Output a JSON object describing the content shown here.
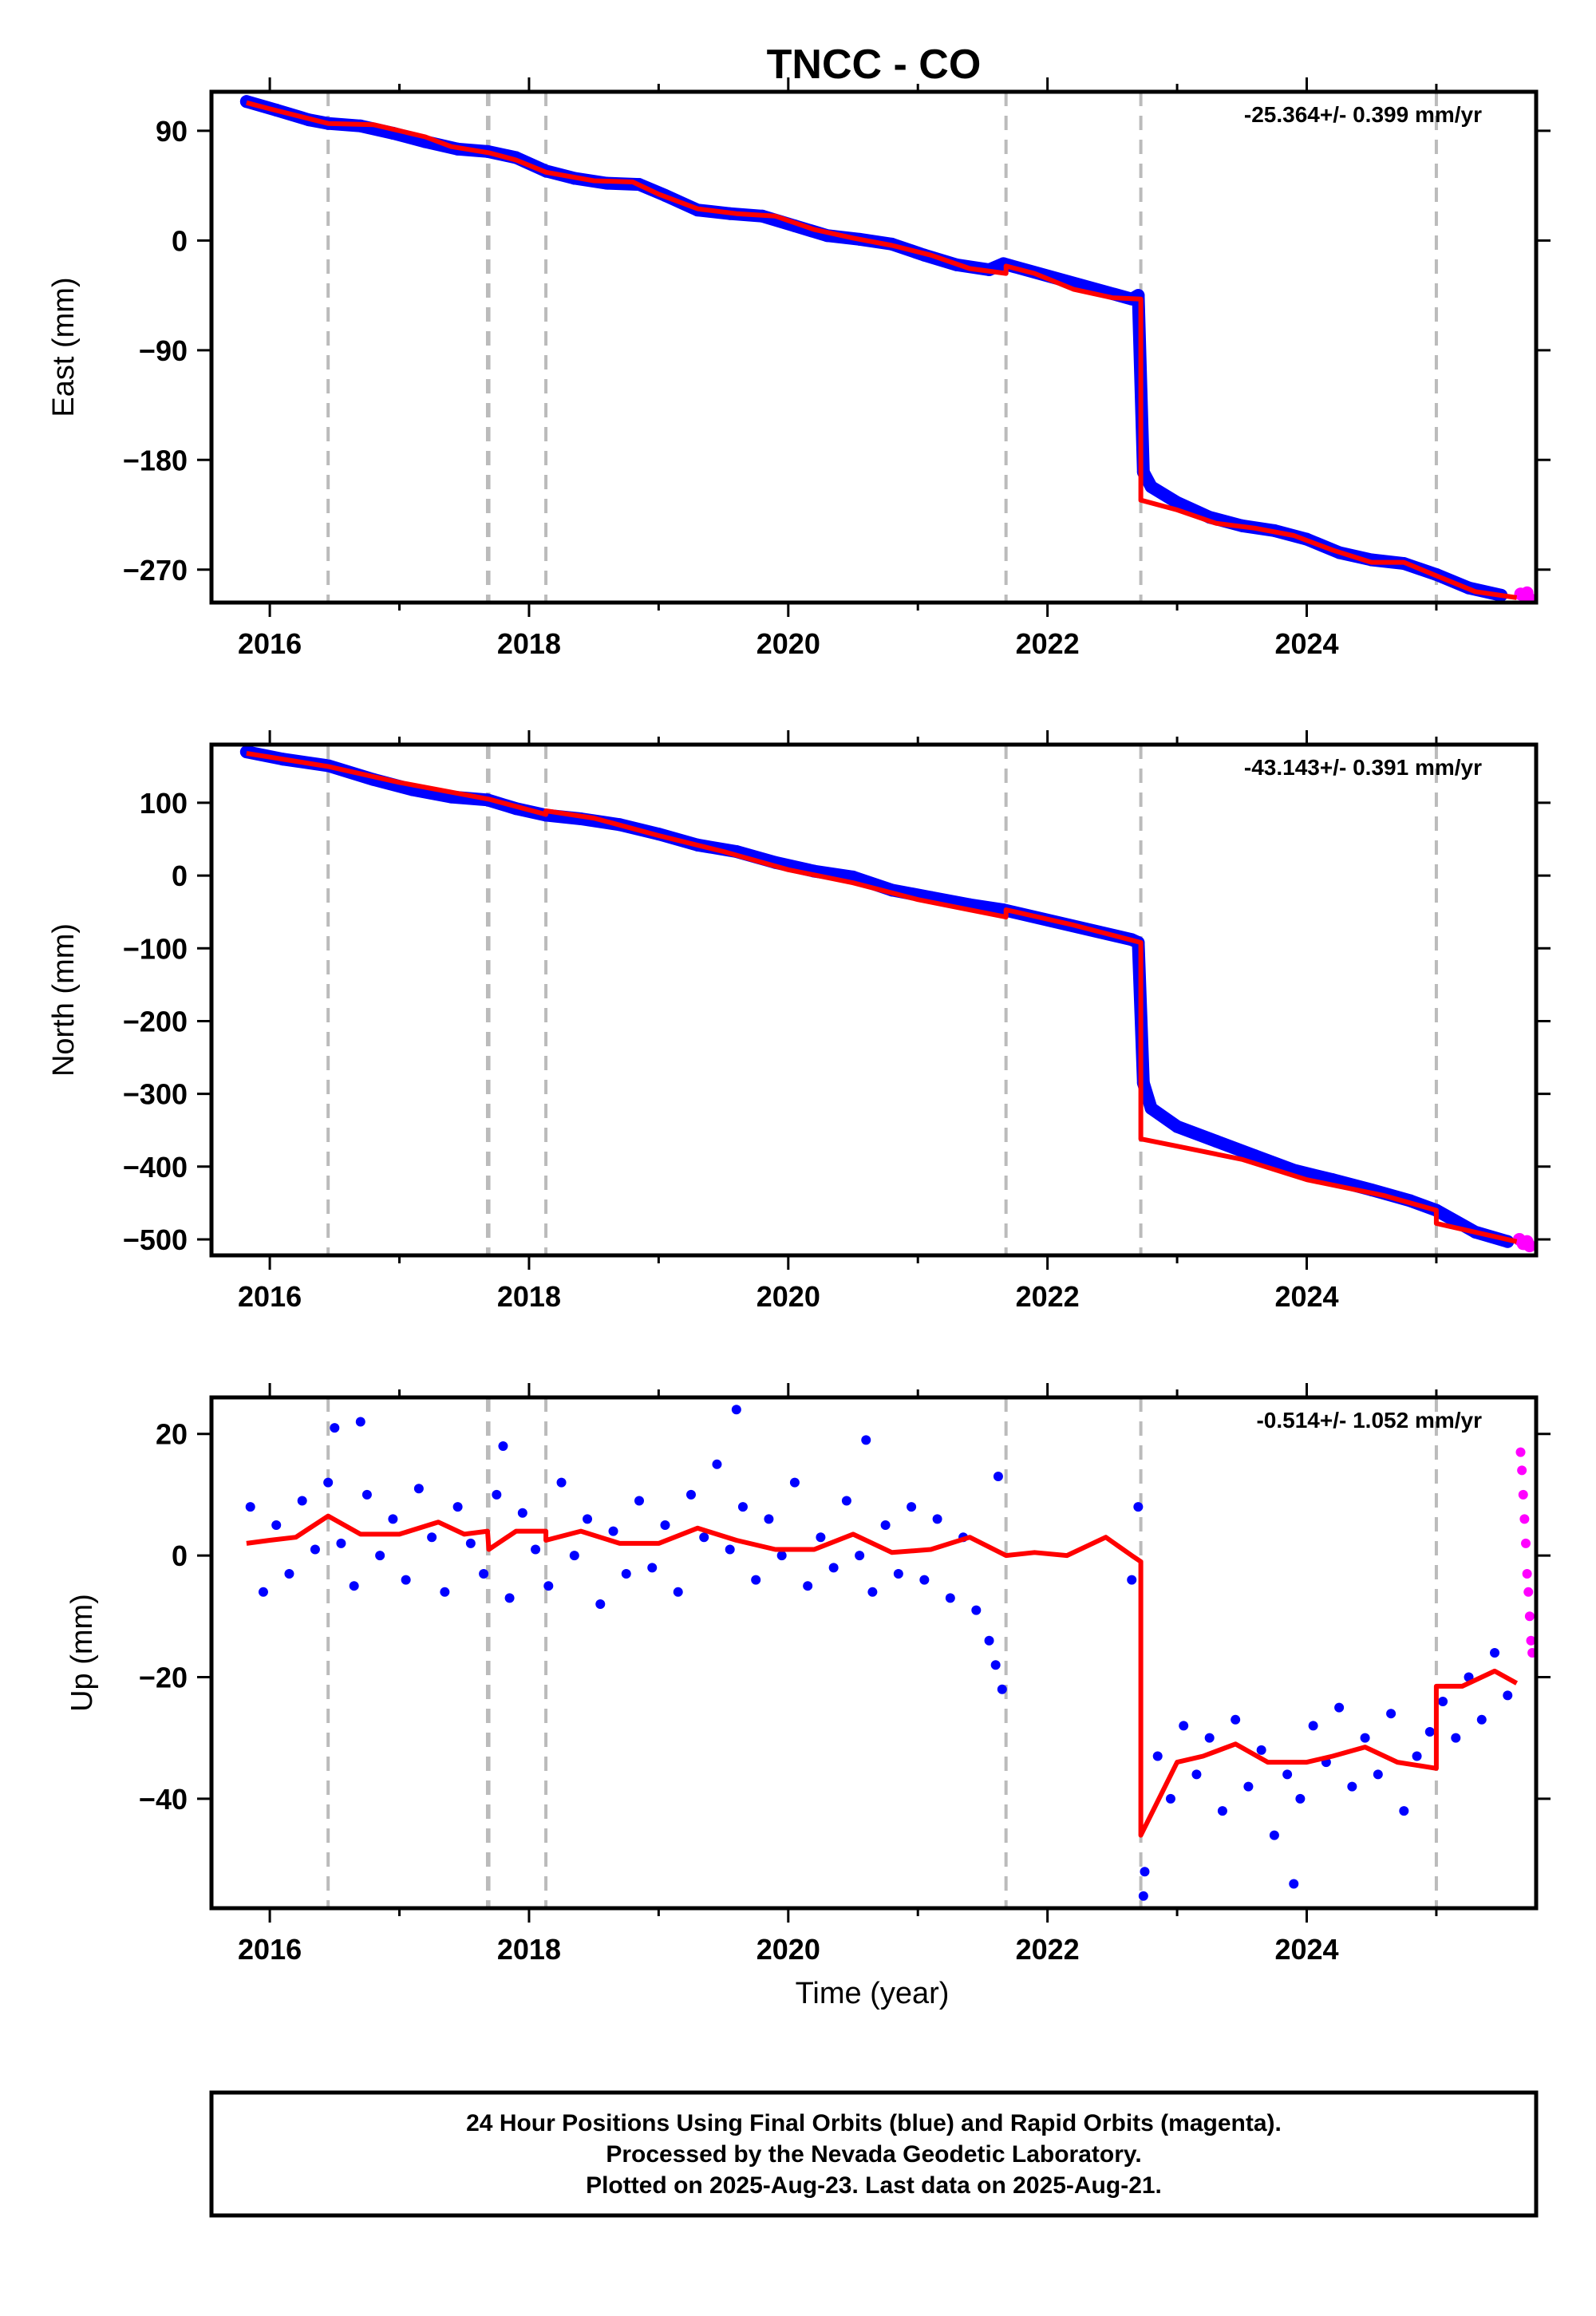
{
  "title": "TNCC - CO",
  "x_axis_label": "Time (year)",
  "footer": [
    "24 Hour Positions Using Final Orbits (blue) and Rapid Orbits (magenta).",
    "Processed by the Nevada Geodetic Laboratory.",
    "Plotted on 2025-Aug-23. Last data on 2025-Aug-21."
  ],
  "colors": {
    "final": "#0000ff",
    "rapid": "#ff00ff",
    "model": "#ff0000",
    "event_line": "#bbbbbb",
    "frame": "#000000"
  },
  "chart_data": [
    {
      "type": "scatter",
      "panel": "east",
      "ylabel": "East (mm)",
      "rate": "-25.364+/- 0.399 mm/yr",
      "xlim": [
        2015.55,
        2025.77
      ],
      "ylim": [
        -297,
        122
      ],
      "x_ticks": [
        2016,
        2018,
        2020,
        2022,
        2024
      ],
      "y_ticks": [
        90,
        0,
        -90,
        -180,
        -270
      ],
      "y_tick_labels": [
        "90",
        "0",
        "−90",
        "−180",
        "−270"
      ],
      "event_lines": [
        2016.45,
        2017.68,
        2017.69,
        2018.13,
        2021.68,
        2022.72,
        2025.0
      ],
      "model": {
        "x": [
          2015.82,
          2016.0,
          2016.45,
          2016.8,
          2017.2,
          2017.4,
          2017.69,
          2017.9,
          2018.13,
          2018.5,
          2018.8,
          2019.0,
          2019.3,
          2019.6,
          2019.9,
          2020.2,
          2020.5,
          2020.8,
          2021.1,
          2021.4,
          2021.68,
          2021.68,
          2021.9,
          2022.2,
          2022.5,
          2022.72,
          2022.72,
          2023.0,
          2023.3,
          2023.6,
          2023.9,
          2024.2,
          2024.5,
          2024.75,
          2025.0,
          2025.3,
          2025.62
        ],
        "y": [
          113,
          108,
          96,
          95,
          85,
          77,
          72,
          66,
          56,
          49,
          48,
          38,
          26,
          22,
          20,
          9,
          2,
          -4,
          -12,
          -23,
          -27,
          -21,
          -27,
          -40,
          -47,
          -48,
          -213,
          -221,
          -232,
          -236,
          -242,
          -254,
          -264,
          -264,
          -275,
          -288,
          -293
        ]
      },
      "series": [
        {
          "name": "Final Orbits",
          "x": [
            2015.82,
            2016.05,
            2016.3,
            2016.45,
            2016.7,
            2016.95,
            2017.2,
            2017.45,
            2017.68,
            2017.9,
            2018.13,
            2018.35,
            2018.6,
            2018.85,
            2019.05,
            2019.3,
            2019.55,
            2019.8,
            2020.05,
            2020.3,
            2020.55,
            2020.8,
            2021.05,
            2021.3,
            2021.55,
            2021.66,
            2022.65,
            2022.7,
            2022.74,
            2022.8,
            2023.0,
            2023.25,
            2023.5,
            2023.75,
            2024.0,
            2024.25,
            2024.5,
            2024.75,
            2025.0,
            2025.25,
            2025.5
          ],
          "y": [
            114,
            107,
            99,
            96,
            94,
            88,
            81,
            75,
            73,
            68,
            57,
            51,
            47,
            46,
            37,
            25,
            22,
            20,
            12,
            4,
            1,
            -3,
            -12,
            -20,
            -24,
            -19,
            -48,
            -45,
            -190,
            -202,
            -215,
            -227,
            -234,
            -238,
            -245,
            -256,
            -262,
            -265,
            -274,
            -285,
            -291
          ],
          "color": "#0000ff"
        },
        {
          "name": "Rapid Orbits",
          "x": [
            2025.65,
            2025.68,
            2025.7,
            2025.72
          ],
          "y": [
            -290,
            -292,
            -289,
            -294
          ],
          "color": "#ff00ff"
        }
      ]
    },
    {
      "type": "scatter",
      "panel": "north",
      "ylabel": "North (mm)",
      "rate": "-43.143+/- 0.391 mm/yr",
      "xlim": [
        2015.55,
        2025.77
      ],
      "ylim": [
        -522,
        180
      ],
      "x_ticks": [
        2016,
        2018,
        2020,
        2022,
        2024
      ],
      "y_ticks": [
        100,
        0,
        -100,
        -200,
        -300,
        -400,
        -500
      ],
      "y_tick_labels": [
        "100",
        "0",
        "−100",
        "−200",
        "−300",
        "−400",
        "−500"
      ],
      "event_lines": [
        2016.45,
        2017.68,
        2017.69,
        2018.13,
        2021.68,
        2022.72,
        2025.0
      ],
      "model": {
        "x": [
          2015.82,
          2016.45,
          2017.0,
          2017.69,
          2018.13,
          2018.13,
          2018.5,
          2019.0,
          2019.5,
          2020.0,
          2020.5,
          2021.0,
          2021.68,
          2021.68,
          2022.2,
          2022.72,
          2022.72,
          2023.0,
          2023.5,
          2024.0,
          2024.6,
          2025.0,
          2025.0,
          2025.62
        ],
        "y": [
          168,
          150,
          128,
          105,
          84,
          89,
          79,
          55,
          33,
          8,
          -10,
          -33,
          -57,
          -47,
          -68,
          -92,
          -362,
          -372,
          -390,
          -418,
          -440,
          -460,
          -478,
          -503
        ]
      },
      "series": [
        {
          "name": "Final Orbits",
          "x": [
            2015.82,
            2016.1,
            2016.45,
            2016.8,
            2017.1,
            2017.4,
            2017.68,
            2017.9,
            2018.13,
            2018.4,
            2018.7,
            2019.0,
            2019.3,
            2019.6,
            2019.9,
            2020.2,
            2020.5,
            2020.8,
            2021.1,
            2021.4,
            2021.66,
            2022.65,
            2022.7,
            2022.74,
            2022.8,
            2023.0,
            2023.3,
            2023.6,
            2023.9,
            2024.2,
            2024.5,
            2024.8,
            2025.0,
            2025.3,
            2025.55
          ],
          "y": [
            170,
            160,
            151,
            132,
            118,
            108,
            104,
            92,
            83,
            78,
            70,
            57,
            42,
            33,
            18,
            6,
            -2,
            -20,
            -30,
            -40,
            -47,
            -88,
            -92,
            -285,
            -320,
            -345,
            -365,
            -385,
            -405,
            -418,
            -432,
            -447,
            -460,
            -490,
            -503
          ],
          "color": "#0000ff"
        },
        {
          "name": "Rapid Orbits",
          "x": [
            2025.64,
            2025.67,
            2025.7,
            2025.72
          ],
          "y": [
            -500,
            -506,
            -503,
            -509
          ],
          "color": "#ff00ff"
        }
      ]
    },
    {
      "type": "scatter",
      "panel": "up",
      "ylabel": "Up (mm)",
      "rate": "-0.514+/- 1.052 mm/yr",
      "xlim": [
        2015.55,
        2025.77
      ],
      "ylim": [
        -58,
        26
      ],
      "x_ticks": [
        2016,
        2018,
        2020,
        2022,
        2024
      ],
      "y_ticks": [
        20,
        0,
        -20,
        -40
      ],
      "y_tick_labels": [
        "20",
        "0",
        "−20",
        "−40"
      ],
      "event_lines": [
        2016.45,
        2017.68,
        2017.69,
        2018.13,
        2021.68,
        2022.72,
        2025.0
      ],
      "model": {
        "x": [
          2015.82,
          2016.0,
          2016.2,
          2016.45,
          2016.7,
          2017.0,
          2017.3,
          2017.5,
          2017.68,
          2017.69,
          2017.9,
          2018.13,
          2018.13,
          2018.4,
          2018.7,
          2019.0,
          2019.3,
          2019.6,
          2019.9,
          2020.2,
          2020.5,
          2020.8,
          2021.1,
          2021.4,
          2021.68,
          2021.9,
          2022.15,
          2022.45,
          2022.65,
          2022.72,
          2022.72,
          2023.0,
          2023.2,
          2023.45,
          2023.7,
          2024.0,
          2024.2,
          2024.45,
          2024.7,
          2025.0,
          2025.0,
          2025.2,
          2025.45,
          2025.62
        ],
        "y": [
          2,
          2.5,
          3,
          6.5,
          3.5,
          3.5,
          5.5,
          3.5,
          4,
          1,
          4,
          4,
          2.5,
          4,
          2,
          2,
          4.5,
          2.5,
          1,
          1,
          3.5,
          0.5,
          1,
          3,
          0,
          0.5,
          0,
          3,
          0,
          -1,
          -46,
          -34,
          -33,
          -31,
          -34,
          -34,
          -33,
          -31.5,
          -34,
          -35,
          -21.5,
          -21.5,
          -19,
          -21
        ],
        "color": "#ff0000"
      },
      "series": [
        {
          "name": "Final Orbits",
          "x": [
            2015.85,
            2015.95,
            2016.05,
            2016.15,
            2016.25,
            2016.35,
            2016.45,
            2016.55,
            2016.65,
            2016.75,
            2016.85,
            2016.95,
            2017.05,
            2017.15,
            2017.25,
            2017.35,
            2017.45,
            2017.55,
            2017.65,
            2017.75,
            2017.85,
            2017.95,
            2018.05,
            2018.15,
            2018.25,
            2018.35,
            2018.45,
            2018.55,
            2018.65,
            2018.75,
            2018.85,
            2018.95,
            2019.05,
            2019.15,
            2019.25,
            2019.35,
            2019.45,
            2019.55,
            2019.65,
            2019.75,
            2019.85,
            2019.95,
            2020.05,
            2020.15,
            2020.25,
            2020.35,
            2020.45,
            2020.55,
            2020.65,
            2020.75,
            2020.85,
            2020.95,
            2021.05,
            2021.15,
            2021.25,
            2021.35,
            2021.45,
            2021.55,
            2021.6,
            2021.65,
            2022.65,
            2022.7,
            2022.75,
            2022.85,
            2022.95,
            2023.05,
            2023.15,
            2023.25,
            2023.35,
            2023.45,
            2023.55,
            2023.65,
            2023.75,
            2023.85,
            2023.95,
            2024.05,
            2024.15,
            2024.25,
            2024.35,
            2024.45,
            2024.55,
            2024.65,
            2024.75,
            2024.85,
            2024.95,
            2025.05,
            2025.15,
            2025.25,
            2025.35,
            2025.45,
            2025.55,
            2016.5,
            2016.7,
            2017.8,
            2019.6,
            2020.6,
            2021.62,
            2023.9,
            2022.74
          ],
          "y": [
            8,
            -6,
            5,
            -3,
            9,
            1,
            12,
            2,
            -5,
            10,
            0,
            6,
            -4,
            11,
            3,
            -6,
            8,
            2,
            -3,
            10,
            -7,
            7,
            1,
            -5,
            12,
            0,
            6,
            -8,
            4,
            -3,
            9,
            -2,
            5,
            -6,
            10,
            3,
            15,
            1,
            8,
            -4,
            6,
            0,
            12,
            -5,
            3,
            -2,
            9,
            0,
            -6,
            5,
            -3,
            8,
            -4,
            6,
            -7,
            3,
            -9,
            -14,
            -18,
            -22,
            -4,
            8,
            -52,
            -33,
            -40,
            -28,
            -36,
            -30,
            -42,
            -27,
            -38,
            -32,
            -46,
            -36,
            -40,
            -28,
            -34,
            -25,
            -38,
            -30,
            -36,
            -26,
            -42,
            -33,
            -29,
            -24,
            -30,
            -20,
            -27,
            -16,
            -23,
            21,
            22,
            18,
            24,
            19,
            13,
            -54,
            -56
          ],
          "color": "#0000ff"
        },
        {
          "name": "Rapid Orbits",
          "x": [
            2025.65,
            2025.66,
            2025.67,
            2025.68,
            2025.69,
            2025.7,
            2025.71,
            2025.72,
            2025.73,
            2025.74
          ],
          "y": [
            17,
            14,
            10,
            6,
            2,
            -3,
            -6,
            -10,
            -14,
            -16
          ],
          "color": "#ff00ff"
        }
      ]
    }
  ]
}
